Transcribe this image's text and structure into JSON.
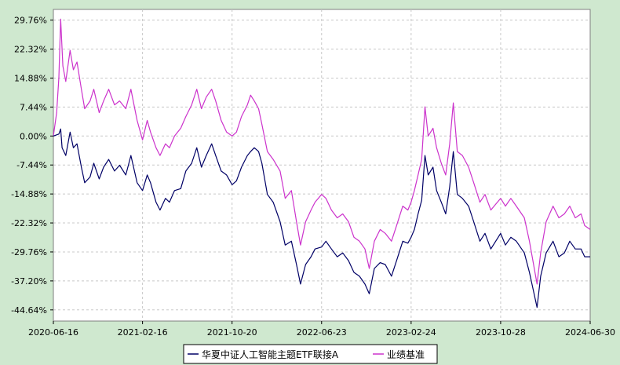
{
  "colors": {
    "background": "#cfe8cf",
    "plot_background": "#ffffff",
    "grid": "#c8c8c8",
    "fund": "#000066",
    "benchmark": "#cc33cc"
  },
  "chart_data": {
    "type": "line",
    "grid": true,
    "legend_position": "bottom-center",
    "ylim": [
      -47.5,
      32.5
    ],
    "y_ticks": [
      "29.76%",
      "22.32%",
      "14.88%",
      "7.44%",
      "0.00%",
      "-7.44%",
      "-14.88%",
      "-22.32%",
      "-29.76%",
      "-37.20%",
      "-44.64%"
    ],
    "y_tick_values": [
      29.76,
      22.32,
      14.88,
      7.44,
      0.0,
      -7.44,
      -14.88,
      -22.32,
      -29.76,
      -37.2,
      -44.64
    ],
    "x_ticks": [
      "2020-06-16",
      "2021-02-16",
      "2021-10-20",
      "2022-06-23",
      "2023-02-24",
      "2023-10-28",
      "2024-06-30"
    ],
    "x_range": [
      "2020-06-16",
      "2024-06-30"
    ],
    "series": [
      {
        "name": "华夏中证人工智能主题ETF联接A",
        "color": "#000066",
        "points": [
          [
            "2020-06-16",
            0.0
          ],
          [
            "2020-07-01",
            0.5
          ],
          [
            "2020-07-06",
            1.8
          ],
          [
            "2020-07-10",
            -3.0
          ],
          [
            "2020-07-20",
            -5.0
          ],
          [
            "2020-08-01",
            1.0
          ],
          [
            "2020-08-10",
            -3.0
          ],
          [
            "2020-08-20",
            -2.0
          ],
          [
            "2020-09-01",
            -8.0
          ],
          [
            "2020-09-10",
            -12.0
          ],
          [
            "2020-09-25",
            -10.5
          ],
          [
            "2020-10-05",
            -7.0
          ],
          [
            "2020-10-20",
            -11.0
          ],
          [
            "2020-11-01",
            -8.0
          ],
          [
            "2020-11-15",
            -6.0
          ],
          [
            "2020-12-01",
            -9.0
          ],
          [
            "2020-12-15",
            -7.5
          ],
          [
            "2021-01-01",
            -10.0
          ],
          [
            "2021-01-15",
            -5.0
          ],
          [
            "2021-02-01",
            -12.0
          ],
          [
            "2021-02-16",
            -14.0
          ],
          [
            "2021-03-01",
            -10.0
          ],
          [
            "2021-03-10",
            -12.0
          ],
          [
            "2021-03-25",
            -17.0
          ],
          [
            "2021-04-05",
            -19.0
          ],
          [
            "2021-04-20",
            -16.0
          ],
          [
            "2021-05-01",
            -17.0
          ],
          [
            "2021-05-15",
            -14.0
          ],
          [
            "2021-06-01",
            -13.5
          ],
          [
            "2021-06-15",
            -9.0
          ],
          [
            "2021-07-01",
            -7.0
          ],
          [
            "2021-07-15",
            -3.0
          ],
          [
            "2021-07-28",
            -8.0
          ],
          [
            "2021-08-10",
            -5.0
          ],
          [
            "2021-08-25",
            -2.0
          ],
          [
            "2021-09-05",
            -5.0
          ],
          [
            "2021-09-20",
            -9.0
          ],
          [
            "2021-10-05",
            -10.0
          ],
          [
            "2021-10-20",
            -12.5
          ],
          [
            "2021-11-01",
            -11.5
          ],
          [
            "2021-11-15",
            -8.0
          ],
          [
            "2021-12-01",
            -5.0
          ],
          [
            "2021-12-10",
            -4.0
          ],
          [
            "2021-12-20",
            -3.0
          ],
          [
            "2022-01-01",
            -4.0
          ],
          [
            "2022-01-10",
            -7.0
          ],
          [
            "2022-01-25",
            -15.0
          ],
          [
            "2022-02-10",
            -17.0
          ],
          [
            "2022-03-01",
            -22.0
          ],
          [
            "2022-03-15",
            -28.0
          ],
          [
            "2022-04-01",
            -27.0
          ],
          [
            "2022-04-15",
            -33.0
          ],
          [
            "2022-04-26",
            -38.0
          ],
          [
            "2022-05-10",
            -33.0
          ],
          [
            "2022-05-25",
            -31.0
          ],
          [
            "2022-06-05",
            -29.0
          ],
          [
            "2022-06-23",
            -28.5
          ],
          [
            "2022-07-05",
            -27.0
          ],
          [
            "2022-07-20",
            -29.0
          ],
          [
            "2022-08-05",
            -31.0
          ],
          [
            "2022-08-20",
            -30.0
          ],
          [
            "2022-09-05",
            -32.0
          ],
          [
            "2022-09-20",
            -35.0
          ],
          [
            "2022-10-05",
            -36.0
          ],
          [
            "2022-10-20",
            -38.0
          ],
          [
            "2022-11-01",
            -40.5
          ],
          [
            "2022-11-15",
            -34.0
          ],
          [
            "2022-12-01",
            -32.5
          ],
          [
            "2022-12-15",
            -33.0
          ],
          [
            "2023-01-01",
            -36.0
          ],
          [
            "2023-01-15",
            -32.0
          ],
          [
            "2023-02-01",
            -27.0
          ],
          [
            "2023-02-15",
            -27.5
          ],
          [
            "2023-02-24",
            -26.0
          ],
          [
            "2023-03-05",
            -24.0
          ],
          [
            "2023-03-15",
            -20.0
          ],
          [
            "2023-03-25",
            -16.5
          ],
          [
            "2023-04-03",
            -5.0
          ],
          [
            "2023-04-12",
            -10.0
          ],
          [
            "2023-04-25",
            -8.0
          ],
          [
            "2023-05-05",
            -14.0
          ],
          [
            "2023-05-18",
            -17.0
          ],
          [
            "2023-05-30",
            -20.0
          ],
          [
            "2023-06-10",
            -13.0
          ],
          [
            "2023-06-20",
            -4.0
          ],
          [
            "2023-07-01",
            -15.0
          ],
          [
            "2023-07-15",
            -16.0
          ],
          [
            "2023-08-01",
            -18.0
          ],
          [
            "2023-08-15",
            -22.0
          ],
          [
            "2023-09-01",
            -27.0
          ],
          [
            "2023-09-15",
            -25.0
          ],
          [
            "2023-10-01",
            -29.0
          ],
          [
            "2023-10-28",
            -25.0
          ],
          [
            "2023-11-10",
            -28.0
          ],
          [
            "2023-11-25",
            -26.0
          ],
          [
            "2023-12-10",
            -27.0
          ],
          [
            "2024-01-01",
            -30.0
          ],
          [
            "2024-01-15",
            -35.0
          ],
          [
            "2024-02-05",
            -44.0
          ],
          [
            "2024-02-15",
            -36.0
          ],
          [
            "2024-03-01",
            -30.0
          ],
          [
            "2024-03-20",
            -27.0
          ],
          [
            "2024-04-05",
            -31.0
          ],
          [
            "2024-04-20",
            -30.0
          ],
          [
            "2024-05-05",
            -27.0
          ],
          [
            "2024-05-20",
            -29.0
          ],
          [
            "2024-06-05",
            -29.0
          ],
          [
            "2024-06-15",
            -31.0
          ],
          [
            "2024-06-30",
            -31.0
          ]
        ]
      },
      {
        "name": "业绩基准",
        "color": "#cc33cc",
        "points": [
          [
            "2020-06-16",
            0.0
          ],
          [
            "2020-06-25",
            6.0
          ],
          [
            "2020-07-01",
            15.0
          ],
          [
            "2020-07-06",
            30.0
          ],
          [
            "2020-07-12",
            18.0
          ],
          [
            "2020-07-20",
            14.0
          ],
          [
            "2020-08-01",
            22.0
          ],
          [
            "2020-08-10",
            17.0
          ],
          [
            "2020-08-20",
            19.0
          ],
          [
            "2020-09-01",
            12.0
          ],
          [
            "2020-09-10",
            7.0
          ],
          [
            "2020-09-25",
            9.0
          ],
          [
            "2020-10-05",
            12.0
          ],
          [
            "2020-10-20",
            6.0
          ],
          [
            "2020-11-01",
            9.0
          ],
          [
            "2020-11-15",
            12.0
          ],
          [
            "2020-12-01",
            8.0
          ],
          [
            "2020-12-15",
            9.0
          ],
          [
            "2021-01-01",
            7.0
          ],
          [
            "2021-01-15",
            12.0
          ],
          [
            "2021-02-01",
            4.0
          ],
          [
            "2021-02-16",
            -1.0
          ],
          [
            "2021-03-01",
            4.0
          ],
          [
            "2021-03-10",
            1.0
          ],
          [
            "2021-03-25",
            -3.0
          ],
          [
            "2021-04-05",
            -5.0
          ],
          [
            "2021-04-20",
            -2.0
          ],
          [
            "2021-05-01",
            -3.0
          ],
          [
            "2021-05-15",
            0.0
          ],
          [
            "2021-06-01",
            2.0
          ],
          [
            "2021-06-15",
            5.0
          ],
          [
            "2021-07-01",
            8.0
          ],
          [
            "2021-07-15",
            12.0
          ],
          [
            "2021-07-28",
            7.0
          ],
          [
            "2021-08-10",
            10.0
          ],
          [
            "2021-08-25",
            12.0
          ],
          [
            "2021-09-05",
            9.0
          ],
          [
            "2021-09-20",
            4.0
          ],
          [
            "2021-10-05",
            1.0
          ],
          [
            "2021-10-20",
            0.0
          ],
          [
            "2021-11-01",
            1.0
          ],
          [
            "2021-11-15",
            5.0
          ],
          [
            "2021-12-01",
            8.0
          ],
          [
            "2021-12-10",
            10.5
          ],
          [
            "2021-12-20",
            9.0
          ],
          [
            "2022-01-01",
            7.0
          ],
          [
            "2022-01-10",
            3.0
          ],
          [
            "2022-01-25",
            -4.0
          ],
          [
            "2022-02-10",
            -6.0
          ],
          [
            "2022-03-01",
            -9.0
          ],
          [
            "2022-03-15",
            -16.0
          ],
          [
            "2022-04-01",
            -14.0
          ],
          [
            "2022-04-15",
            -22.0
          ],
          [
            "2022-04-26",
            -28.0
          ],
          [
            "2022-05-10",
            -22.0
          ],
          [
            "2022-05-25",
            -19.0
          ],
          [
            "2022-06-05",
            -17.0
          ],
          [
            "2022-06-23",
            -15.0
          ],
          [
            "2022-07-05",
            -16.0
          ],
          [
            "2022-07-20",
            -19.0
          ],
          [
            "2022-08-05",
            -21.0
          ],
          [
            "2022-08-20",
            -20.0
          ],
          [
            "2022-09-05",
            -22.0
          ],
          [
            "2022-09-20",
            -26.0
          ],
          [
            "2022-10-05",
            -27.0
          ],
          [
            "2022-10-20",
            -29.0
          ],
          [
            "2022-11-01",
            -34.0
          ],
          [
            "2022-11-15",
            -27.0
          ],
          [
            "2022-12-01",
            -24.0
          ],
          [
            "2022-12-15",
            -25.0
          ],
          [
            "2023-01-01",
            -27.0
          ],
          [
            "2023-01-15",
            -23.0
          ],
          [
            "2023-02-01",
            -18.0
          ],
          [
            "2023-02-15",
            -19.0
          ],
          [
            "2023-02-24",
            -17.0
          ],
          [
            "2023-03-05",
            -14.0
          ],
          [
            "2023-03-15",
            -10.0
          ],
          [
            "2023-03-25",
            -6.0
          ],
          [
            "2023-04-03",
            7.5
          ],
          [
            "2023-04-12",
            0.0
          ],
          [
            "2023-04-25",
            2.0
          ],
          [
            "2023-05-05",
            -3.0
          ],
          [
            "2023-05-18",
            -7.0
          ],
          [
            "2023-05-30",
            -10.0
          ],
          [
            "2023-06-10",
            -2.0
          ],
          [
            "2023-06-20",
            8.5
          ],
          [
            "2023-07-01",
            -4.0
          ],
          [
            "2023-07-15",
            -5.0
          ],
          [
            "2023-08-01",
            -8.0
          ],
          [
            "2023-08-15",
            -12.0
          ],
          [
            "2023-09-01",
            -17.0
          ],
          [
            "2023-09-15",
            -15.0
          ],
          [
            "2023-10-01",
            -19.0
          ],
          [
            "2023-10-28",
            -16.0
          ],
          [
            "2023-11-10",
            -18.0
          ],
          [
            "2023-11-25",
            -16.0
          ],
          [
            "2023-12-10",
            -18.0
          ],
          [
            "2024-01-01",
            -21.0
          ],
          [
            "2024-01-15",
            -27.0
          ],
          [
            "2024-02-05",
            -38.0
          ],
          [
            "2024-02-15",
            -30.0
          ],
          [
            "2024-03-01",
            -22.0
          ],
          [
            "2024-03-20",
            -18.0
          ],
          [
            "2024-04-05",
            -21.0
          ],
          [
            "2024-04-20",
            -20.0
          ],
          [
            "2024-05-05",
            -18.0
          ],
          [
            "2024-05-20",
            -21.0
          ],
          [
            "2024-06-05",
            -20.0
          ],
          [
            "2024-06-15",
            -23.0
          ],
          [
            "2024-06-30",
            -24.0
          ]
        ]
      }
    ]
  }
}
